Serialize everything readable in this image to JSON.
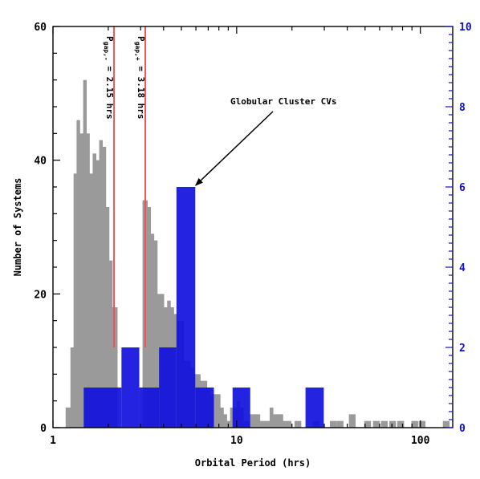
{
  "chart_data": {
    "type": "bar",
    "title": "",
    "xlabel": "Orbital Period (hrs)",
    "ylabel": "Number of Systems",
    "x_scale": "log",
    "xlim": [
      1,
      150
    ],
    "ylim_left": [
      0,
      60
    ],
    "ylim_right": [
      0,
      10
    ],
    "x_ticks": [
      1,
      10,
      100
    ],
    "x_tick_labels": [
      "1",
      "10",
      "100"
    ],
    "y_ticks_left": [
      0,
      20,
      40,
      60
    ],
    "y_tick_labels_left": [
      "0",
      "20",
      "40",
      "60"
    ],
    "y_ticks_right": [
      0,
      2,
      4,
      6,
      8,
      10
    ],
    "y_tick_labels_right": [
      "0",
      "2",
      "4",
      "6",
      "8",
      "10"
    ],
    "grid": false,
    "colors": {
      "all_cvs": "#9a9a9a",
      "globular_cvs": "#1111dd",
      "gap_lines": "#ee5555",
      "left_axis": "#000000",
      "right_axis": "#1111cc"
    },
    "series": [
      {
        "name": "",
        "axis": "left",
        "color": "#9a9a9a",
        "x": [
          1.22,
          1.27,
          1.32,
          1.37,
          1.43,
          1.49,
          1.55,
          1.61,
          1.68,
          1.75,
          1.82,
          1.9,
          1.98,
          2.06,
          2.15,
          3.2,
          3.33,
          3.47,
          3.62,
          3.77,
          3.93,
          4.1,
          4.27,
          4.45,
          4.64,
          4.84,
          5.04,
          5.26,
          5.48,
          5.71,
          5.95,
          6.2,
          6.47,
          6.74,
          7.03,
          7.33,
          7.64,
          7.96,
          8.3,
          8.65,
          9.02,
          9.4,
          9.8,
          10.2,
          10.65,
          11.1,
          11.55,
          12.05,
          12.55,
          13.1,
          13.65,
          14.2,
          14.8,
          15.45,
          16.1,
          16.75,
          17.5,
          18.2,
          19.0,
          21.5,
          27.0,
          33.5,
          36.5,
          42.5,
          51.5,
          57.5,
          63.5,
          70.5,
          78.0,
          93.0,
          102.0,
          138.0
        ],
        "values": [
          3,
          12,
          38,
          46,
          44,
          52,
          44,
          38,
          41,
          40,
          43,
          42,
          33,
          25,
          18,
          34,
          33,
          29,
          28,
          20,
          20,
          18,
          19,
          18,
          17,
          16,
          16,
          10,
          10,
          9,
          8,
          8,
          7,
          7,
          6,
          5,
          5,
          5,
          3,
          2,
          1,
          3,
          3,
          4,
          3,
          1,
          1,
          2,
          2,
          2,
          1,
          1,
          1,
          3,
          2,
          2,
          2,
          1,
          1,
          1,
          1,
          1,
          1,
          2,
          1,
          1,
          1,
          1,
          1,
          1,
          1,
          1
        ]
      },
      {
        "name": "Globular Cluster CVs",
        "axis": "right",
        "color": "#1111dd",
        "bins": [
          {
            "x0": 1.47,
            "x1": 2.36,
            "value": 1
          },
          {
            "x0": 2.36,
            "x1": 2.95,
            "value": 2
          },
          {
            "x0": 2.95,
            "x1": 3.78,
            "value": 1
          },
          {
            "x0": 3.78,
            "x1": 4.7,
            "value": 2
          },
          {
            "x0": 4.7,
            "x1": 5.95,
            "value": 6
          },
          {
            "x0": 5.95,
            "x1": 7.52,
            "value": 1
          },
          {
            "x0": 9.5,
            "x1": 11.85,
            "value": 1
          },
          {
            "x0": 23.7,
            "x1": 29.8,
            "value": 1
          }
        ]
      }
    ],
    "vertical_lines": [
      {
        "x": 2.15,
        "label": "P_gap,- = 2.15 hrs",
        "main": "P",
        "sub": "gap,-",
        "rest": " = 2.15 hrs"
      },
      {
        "x": 3.18,
        "label": "P_gap,+ = 3.18 hrs",
        "main": "P",
        "sub": "gap,+",
        "rest": " = 3.18 hrs"
      }
    ],
    "annotations": [
      {
        "text": "Globular Cluster CVs",
        "points_to": {
          "x": 5.3,
          "y_right": 6
        }
      }
    ]
  }
}
